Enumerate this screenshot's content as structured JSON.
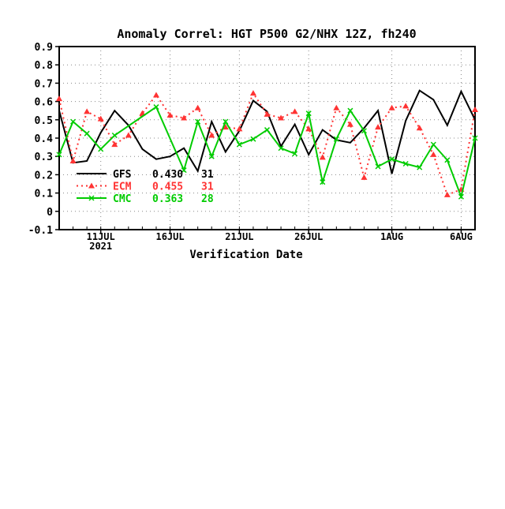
{
  "chart_data": {
    "type": "line",
    "title": "Anomaly Correl: HGT P500 G2/NHX 12Z, fh240",
    "xlabel": "Verification Date",
    "ylabel": "",
    "ylim": [
      -0.1,
      0.9
    ],
    "yticks": [
      "0.9",
      "0.8",
      "0.7",
      "0.6",
      "0.5",
      "0.4",
      "0.3",
      "0.2",
      "0.1",
      "0",
      "-0.1"
    ],
    "grid": true,
    "legend_placement": "lower-left",
    "x": [
      "8JUL",
      "9JUL",
      "10JUL",
      "11JUL",
      "12JUL",
      "13JUL",
      "14JUL",
      "15JUL",
      "16JUL",
      "17JUL",
      "18JUL",
      "19JUL",
      "20JUL",
      "21JUL",
      "22JUL",
      "23JUL",
      "24JUL",
      "25JUL",
      "26JUL",
      "27JUL",
      "28JUL",
      "29JUL",
      "30JUL",
      "31JUL",
      "1AUG",
      "2AUG",
      "3AUG",
      "4AUG",
      "5AUG",
      "6AUG",
      "7AUG"
    ],
    "xtick_labels": [
      {
        "date": "11JUL",
        "label": "11JUL",
        "sub": "2021"
      },
      {
        "date": "16JUL",
        "label": "16JUL",
        "sub": ""
      },
      {
        "date": "21JUL",
        "label": "21JUL",
        "sub": ""
      },
      {
        "date": "26JUL",
        "label": "26JUL",
        "sub": ""
      },
      {
        "date": "1AUG",
        "label": "1AUG",
        "sub": ""
      },
      {
        "date": "6AUG",
        "label": "6AUG",
        "sub": ""
      }
    ],
    "series": [
      {
        "name": "GFS",
        "mean": "0.430",
        "count": "31",
        "color": "#000000",
        "style": "solid",
        "marker": "none",
        "values": [
          0.55,
          0.265,
          0.275,
          0.43,
          0.55,
          0.47,
          0.34,
          0.285,
          0.3,
          0.345,
          0.22,
          0.49,
          0.325,
          0.44,
          0.605,
          0.545,
          0.355,
          0.475,
          0.31,
          0.445,
          0.39,
          0.375,
          0.455,
          0.55,
          0.205,
          0.495,
          0.66,
          0.61,
          0.47,
          0.655,
          0.5
        ]
      },
      {
        "name": "ECM",
        "mean": "0.455",
        "count": "31",
        "color": "#ff3333",
        "style": "dotted",
        "marker": "triangle",
        "values": [
          0.615,
          0.275,
          0.545,
          0.505,
          0.365,
          0.415,
          0.535,
          0.635,
          0.525,
          0.51,
          0.565,
          0.415,
          0.46,
          0.45,
          0.645,
          0.53,
          0.51,
          0.545,
          0.45,
          0.295,
          0.565,
          0.475,
          0.185,
          0.46,
          0.565,
          0.575,
          0.455,
          0.31,
          0.09,
          0.12,
          0.555
        ]
      },
      {
        "name": "CMC",
        "mean": "0.363",
        "count": "28",
        "color": "#00cc00",
        "style": "solid",
        "marker": "x",
        "values": [
          0.31,
          0.49,
          0.425,
          0.34,
          0.415,
          null,
          null,
          0.57,
          null,
          0.225,
          0.49,
          0.3,
          0.49,
          0.365,
          0.395,
          0.445,
          0.345,
          0.315,
          0.535,
          0.16,
          0.395,
          0.55,
          0.44,
          0.245,
          0.285,
          0.26,
          0.24,
          0.365,
          0.28,
          0.08,
          0.4
        ]
      }
    ]
  }
}
